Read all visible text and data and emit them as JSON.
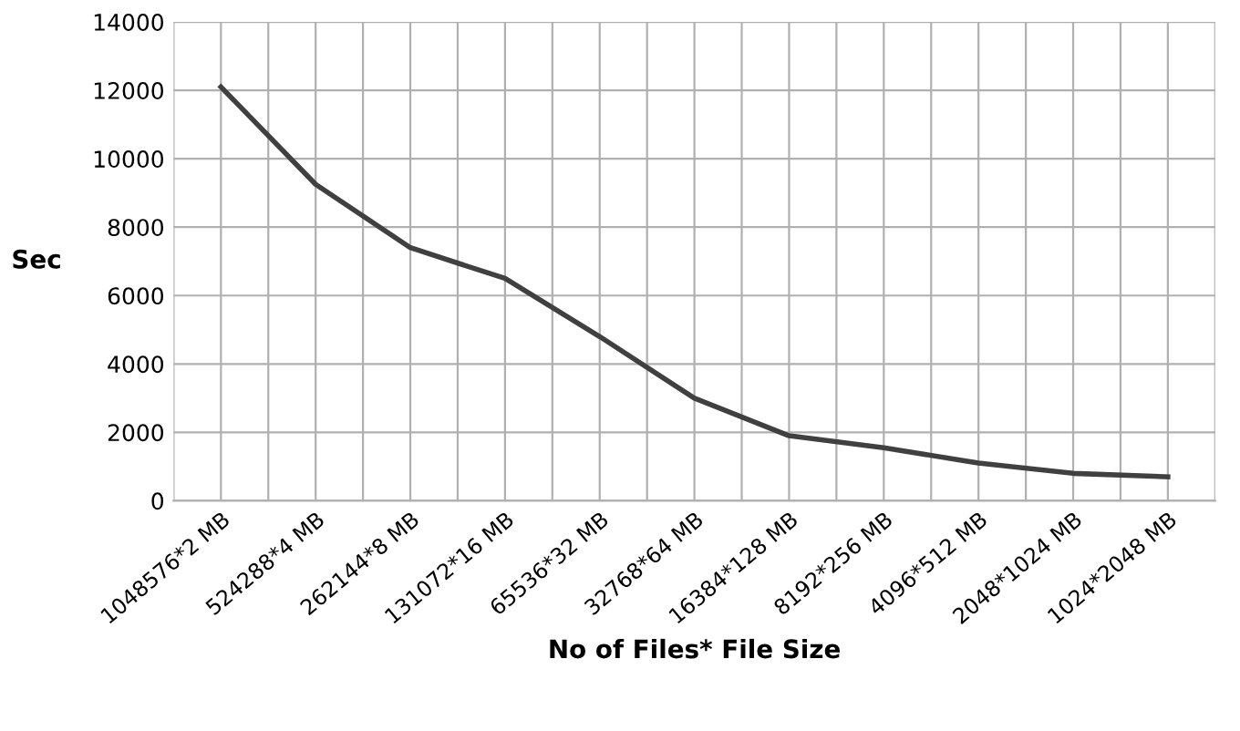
{
  "chart_data": {
    "type": "line",
    "xlabel": "No of Files* File Size",
    "ylabel": "Sec",
    "categories": [
      "1048576*2 MB",
      "524288*4 MB",
      "262144*8 MB",
      "131072*16 MB",
      "65536*32 MB",
      "32768*64 MB",
      "16384*128 MB",
      "8192*256 MB",
      "4096*512 MB",
      "2048*1024 MB",
      "1024*2048 MB"
    ],
    "series": [
      {
        "color": "#404040",
        "values": [
          12100,
          9250,
          7400,
          6500,
          4800,
          3000,
          1900,
          1550,
          1100,
          800,
          700
        ]
      }
    ],
    "ylim": [
      0,
      14000
    ],
    "yticks": [
      0,
      2000,
      4000,
      6000,
      8000,
      10000,
      12000,
      14000
    ],
    "grid": true,
    "marker": "none",
    "line_style": "solid"
  }
}
